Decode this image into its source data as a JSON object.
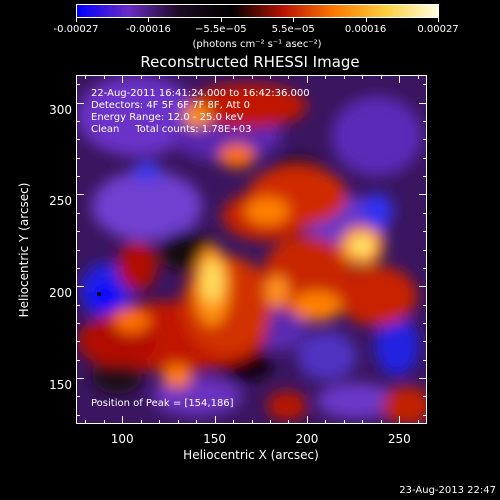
{
  "colorbar": {
    "tick_labels": [
      "-0.00027",
      "-0.00016",
      "−5.5e−05",
      "5.5e−05",
      "0.00016",
      "0.00027"
    ],
    "units": "(photons cm⁻² s⁻¹ asec⁻²)",
    "colormap": [
      "#0000ff",
      "#6a2bc4",
      "#1a0a20",
      "#000000",
      "#b81200",
      "#ff7a00",
      "#ffd040",
      "#ffffe0"
    ]
  },
  "title": "Reconstructed RHESSI Image",
  "annotations": {
    "time_range": "22-Aug-2011 16:41:24.000 to 16:42:36.000",
    "detectors": "Detectors: 4F 5F 6F 7F 8F, Att 0",
    "energy": "Energy Range: 12.0 - 25.0 keV",
    "method": "Clean     Total counts: 1.78E+03",
    "peak": "Position of Peak = [154,186]"
  },
  "axes": {
    "x_title": "Heliocentric X (arcsec)",
    "y_title": "Heliocentric Y (arcsec)",
    "x_ticks": [
      "100",
      "150",
      "200",
      "250"
    ],
    "y_ticks": [
      "150",
      "200",
      "250",
      "300"
    ],
    "x_range": [
      75,
      265
    ],
    "y_range": [
      125,
      315
    ]
  },
  "timestamp": "23-Aug-2013 22:47"
}
